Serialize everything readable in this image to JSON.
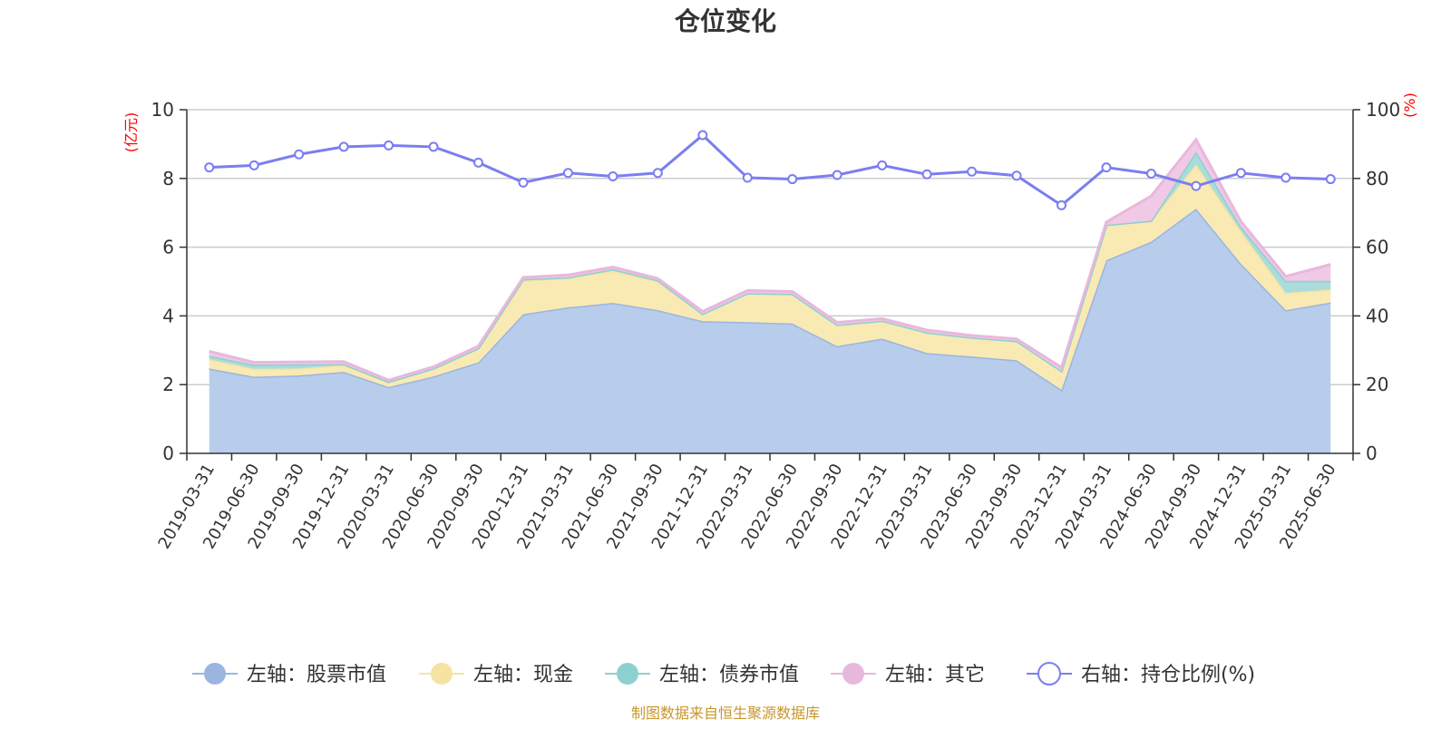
{
  "chart_data": {
    "type": "area",
    "title": "仓位变化",
    "left_axis_unit": "(亿元)",
    "right_axis_unit": "(%)",
    "left_ylim": [
      0,
      10
    ],
    "left_yticks": [
      "0",
      "2",
      "4",
      "6",
      "8",
      "10"
    ],
    "right_ylim": [
      0,
      100
    ],
    "right_yticks": [
      "0",
      "20",
      "40",
      "60",
      "80",
      "100"
    ],
    "grid": true,
    "legend_position": "bottom",
    "categories": [
      "2019-03-31",
      "2019-06-30",
      "2019-09-30",
      "2019-12-31",
      "2020-03-31",
      "2020-06-30",
      "2020-09-30",
      "2020-12-31",
      "2021-03-31",
      "2021-06-30",
      "2021-09-30",
      "2021-12-31",
      "2022-03-31",
      "2022-06-30",
      "2022-09-30",
      "2022-12-31",
      "2023-03-31",
      "2023-06-30",
      "2023-09-30",
      "2023-12-31",
      "2024-03-31",
      "2024-06-30",
      "2024-09-30",
      "2024-12-31",
      "2025-03-31",
      "2025-06-30"
    ],
    "series": [
      {
        "name": "左轴：股票市值",
        "axis": "left",
        "stacked": true,
        "color": "#9ab5e0",
        "fill": "#b8cdeb",
        "values": [
          2.47,
          2.23,
          2.27,
          2.37,
          1.93,
          2.24,
          2.65,
          4.05,
          4.25,
          4.38,
          4.17,
          3.85,
          3.82,
          3.78,
          3.12,
          3.34,
          2.92,
          2.82,
          2.71,
          1.85,
          5.62,
          6.16,
          7.12,
          5.52,
          4.17,
          4.39
        ]
      },
      {
        "name": "左轴：现金",
        "axis": "left",
        "stacked": true,
        "color": "#f6e3a2",
        "fill": "#f9eab4",
        "values": [
          0.27,
          0.23,
          0.2,
          0.2,
          0.15,
          0.23,
          0.41,
          0.97,
          0.87,
          0.93,
          0.84,
          0.21,
          0.84,
          0.86,
          0.62,
          0.52,
          0.6,
          0.55,
          0.56,
          0.55,
          1.03,
          0.61,
          1.29,
          0.95,
          0.5,
          0.38
        ]
      },
      {
        "name": "左轴：债券市值",
        "axis": "left",
        "stacked": true,
        "color": "#8dd0d0",
        "fill": "#a9dcdb",
        "values": [
          0.1,
          0.12,
          0.12,
          0.03,
          0.0,
          0.0,
          0.0,
          0.05,
          0.0,
          0.05,
          0.03,
          0.0,
          0.0,
          0.0,
          0.0,
          0.0,
          0.0,
          0.0,
          0.0,
          0.0,
          0.0,
          0.0,
          0.37,
          0.13,
          0.35,
          0.25
        ]
      },
      {
        "name": "左轴：其它",
        "axis": "left",
        "stacked": true,
        "color": "#e8b8dc",
        "fill": "#efc9e5",
        "values": [
          0.13,
          0.07,
          0.07,
          0.07,
          0.05,
          0.05,
          0.06,
          0.05,
          0.07,
          0.06,
          0.05,
          0.07,
          0.08,
          0.07,
          0.07,
          0.06,
          0.07,
          0.06,
          0.06,
          0.1,
          0.08,
          0.72,
          0.35,
          0.15,
          0.13,
          0.48
        ]
      },
      {
        "name": "右轴：持仓比例(%)",
        "axis": "right",
        "stacked": false,
        "color": "#7b7ef0",
        "values": [
          83.2,
          83.8,
          87.0,
          89.2,
          89.6,
          89.2,
          84.6,
          78.8,
          81.6,
          80.6,
          81.6,
          92.6,
          80.2,
          79.8,
          81.0,
          83.8,
          81.2,
          82.0,
          80.8,
          72.2,
          83.2,
          81.4,
          77.8,
          81.6,
          80.2,
          79.8
        ]
      }
    ]
  },
  "footer": {
    "source_text": "制图数据来自恒生聚源数据库"
  }
}
